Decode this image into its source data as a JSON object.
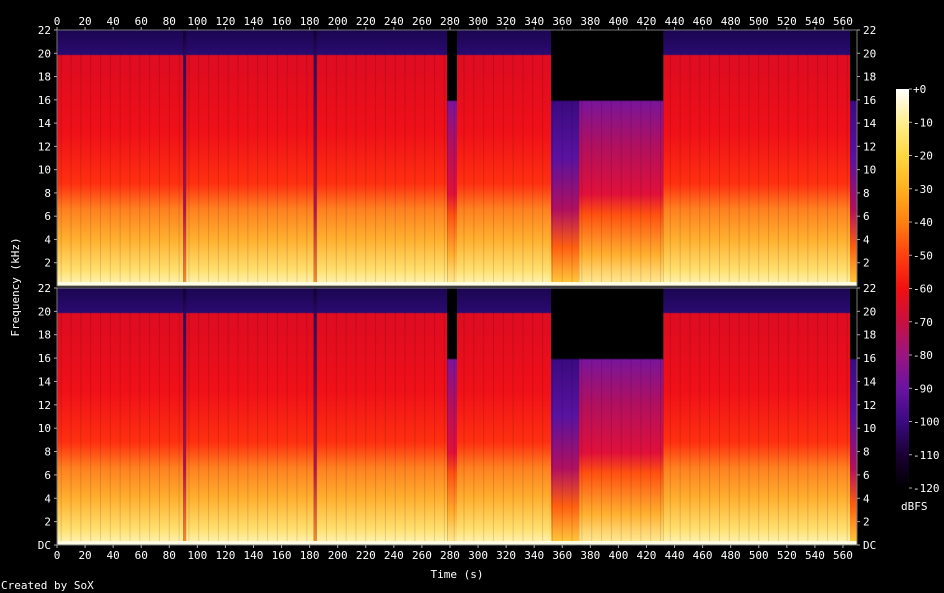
{
  "chart_data": {
    "type": "heatmap",
    "xlabel": "Time (s)",
    "ylabel": "Frequency (kHz)",
    "xlim": [
      0,
      570
    ],
    "ylim": [
      0,
      22
    ],
    "x_ticks": [
      "0",
      "20",
      "40",
      "60",
      "80",
      "100",
      "120",
      "140",
      "160",
      "180",
      "200",
      "220",
      "240",
      "260",
      "280",
      "300",
      "320",
      "340",
      "360",
      "380",
      "400",
      "420",
      "440",
      "460",
      "480",
      "500",
      "520",
      "540",
      "560"
    ],
    "y_ticks": [
      "DC",
      "2",
      "4",
      "6",
      "8",
      "10",
      "12",
      "14",
      "16",
      "18",
      "20",
      "22"
    ],
    "top_panel_y_ticks": [
      "2",
      "4",
      "6",
      "8",
      "10",
      "12",
      "14",
      "16",
      "18",
      "20",
      "22"
    ],
    "channels": 2,
    "colorbar": {
      "label": "dBFS",
      "ticks": [
        "+0",
        "-10",
        "-20",
        "-30",
        "-40",
        "-50",
        "-60",
        "-70",
        "-80",
        "-90",
        "-100",
        "-110",
        "-120"
      ],
      "range": [
        -120,
        0
      ],
      "colors": [
        "#000000",
        "#1a0033",
        "#3a0a80",
        "#6a13a0",
        "#9a1580",
        "#c81040",
        "#f01010",
        "#ff4010",
        "#ff8010",
        "#ffb020",
        "#ffd840",
        "#ffee90",
        "#ffffff"
      ]
    },
    "segments": [
      {
        "start": 0,
        "end": 90,
        "cutoff_khz": 20,
        "level": "loud"
      },
      {
        "start": 90,
        "end": 92,
        "cutoff_khz": 20,
        "level": "gap"
      },
      {
        "start": 92,
        "end": 183,
        "cutoff_khz": 20,
        "level": "loud"
      },
      {
        "start": 183,
        "end": 185,
        "cutoff_khz": 20,
        "level": "gap"
      },
      {
        "start": 185,
        "end": 278,
        "cutoff_khz": 20,
        "level": "loud"
      },
      {
        "start": 278,
        "end": 285,
        "cutoff_khz": 16,
        "level": "mid"
      },
      {
        "start": 285,
        "end": 352,
        "cutoff_khz": 20,
        "level": "loud"
      },
      {
        "start": 352,
        "end": 372,
        "cutoff_khz": 16,
        "level": "fade"
      },
      {
        "start": 372,
        "end": 432,
        "cutoff_khz": 16,
        "level": "mid"
      },
      {
        "start": 432,
        "end": 565,
        "cutoff_khz": 20,
        "level": "loud"
      },
      {
        "start": 565,
        "end": 570,
        "cutoff_khz": 16,
        "level": "fade"
      }
    ]
  },
  "footer": {
    "credit": "Created by SoX"
  }
}
